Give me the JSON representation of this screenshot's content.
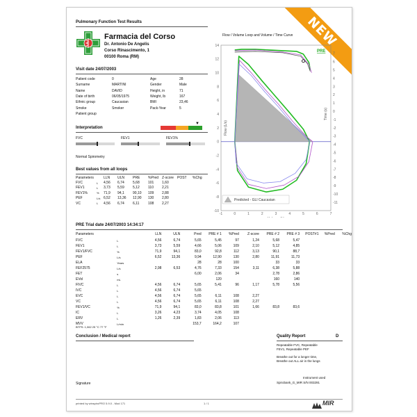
{
  "badge": {
    "text": "NEW"
  },
  "report_title": "Pulmonary Function Test Results",
  "pharmacy": {
    "name": "Farmacia del Corso",
    "doctor": "Dr. Antonio De Angelis",
    "address": "Corso Rinascimento, 1",
    "city": "00100 Roma (RM)"
  },
  "visit": {
    "title": "Visit date 24/07/2003",
    "left": [
      {
        "label": "Patient code",
        "value": "0"
      },
      {
        "label": "Surname",
        "value": "MARTINI"
      },
      {
        "label": "Name",
        "value": "DAVID"
      },
      {
        "label": "Date of birth",
        "value": "06/05/1975"
      },
      {
        "label": "Ethnic group",
        "value": "Caucasian"
      },
      {
        "label": "Smoke",
        "value": "Smoker"
      },
      {
        "label": "Patient group",
        "value": ""
      }
    ],
    "right": [
      {
        "label": "Age",
        "value": "28"
      },
      {
        "label": "Gender",
        "value": "Male"
      },
      {
        "label": "Height, in",
        "value": "71"
      },
      {
        "label": "Weight, lb",
        "value": "167"
      },
      {
        "label": "BMI",
        "value": "23,46"
      },
      {
        "label": "Pack-Year",
        "value": "5"
      }
    ]
  },
  "interpretation": {
    "title": "Interpretation",
    "bars": [
      {
        "label": "FVC",
        "level": 0.55
      },
      {
        "label": "FEV1",
        "level": 0.45
      },
      {
        "label": "FEV1%",
        "level": 0.6
      }
    ],
    "result": "Normal Spirometry"
  },
  "best": {
    "title": "Best values from all loops",
    "headers": [
      "Parameters",
      "",
      "LLN",
      "ULN",
      "PRE",
      "%Pred",
      "Z-score",
      "POST",
      "%Chg"
    ],
    "rows": [
      [
        "FVC",
        "L",
        "4,56",
        "6,74",
        "5,68",
        "101",
        "1,60",
        "",
        ""
      ],
      [
        "FEV1",
        "L",
        "3,73",
        "5,59",
        "5,12",
        "110",
        "2,21",
        "",
        ""
      ],
      [
        "FEV1%",
        "%",
        "71,9",
        "94,1",
        "90,10",
        "109",
        "2,88",
        "",
        ""
      ],
      [
        "PEF",
        "L/s",
        "6,52",
        "13,36",
        "12,90",
        "130",
        "2,80",
        "",
        ""
      ],
      [
        "VC",
        "L",
        "4,56",
        "6,74",
        "6,11",
        "108",
        "2,27",
        "",
        ""
      ]
    ]
  },
  "trial": {
    "title": "PRE Trial date 24/07/2003   14:34:17",
    "headers": [
      "Parameters",
      "",
      "LLN",
      "ULN",
      "Pred",
      "PRE # 1",
      "%Pred",
      "Z-score",
      "PRE # 2",
      "PRE # 3",
      "POST#1",
      "%Pred",
      "%Chg"
    ],
    "rows": [
      [
        "FVC",
        "L",
        "4,56",
        "6,74",
        "5,65",
        "5,45",
        "97",
        "1,24",
        "5,68",
        "5,47",
        "",
        "",
        ""
      ],
      [
        "FEV1",
        "L",
        "3,73",
        "5,59",
        "4,66",
        "5,06",
        "109",
        "2,10",
        "5,12",
        "4,85",
        "",
        "",
        ""
      ],
      [
        "FEV1/FVC",
        "%",
        "71,9",
        "94,1",
        "83,0",
        "92,8",
        "112",
        "3,13",
        "90,1",
        "88,7",
        "",
        "",
        ""
      ],
      [
        "PEF",
        "L/s",
        "6,52",
        "13,36",
        "9,94",
        "12,90",
        "130",
        "2,80",
        "11,91",
        "11,73",
        "",
        "",
        ""
      ],
      [
        "ELA",
        "Years",
        "",
        "",
        "28",
        "28",
        "100",
        "",
        "33",
        "33",
        "",
        "",
        ""
      ],
      [
        "FEF2575",
        "L/s",
        "2,98",
        "6,53",
        "4,76",
        "7,33",
        "154",
        "3,11",
        "6,38",
        "5,88",
        "",
        "",
        ""
      ],
      [
        "FET",
        "s",
        "",
        "",
        "6,00",
        "2,06",
        "34",
        "",
        "2,78",
        "2,86",
        "",
        "",
        ""
      ],
      [
        "EVol",
        "mL",
        "",
        "",
        "",
        "120",
        "",
        "",
        "160",
        "140",
        "",
        "",
        ""
      ],
      [
        "FIVC",
        "L",
        "4,56",
        "6,74",
        "5,65",
        "5,41",
        "96",
        "1,17",
        "5,78",
        "5,56",
        "",
        "",
        ""
      ],
      [
        "IVC",
        "L",
        "4,56",
        "6,74",
        "5,65",
        "",
        "",
        "",
        "",
        "",
        "",
        "",
        ""
      ],
      [
        "EVC",
        "L",
        "4,56",
        "6,74",
        "5,65",
        "6,11",
        "108",
        "2,27",
        "",
        "",
        "",
        "",
        ""
      ],
      [
        "VC",
        "L",
        "4,56",
        "6,74",
        "5,65",
        "6,11",
        "108",
        "2,27",
        "",
        "",
        "",
        "",
        ""
      ],
      [
        "FEV1/VC",
        "%",
        "71,9",
        "94,1",
        "83,0",
        "83,8",
        "101",
        "1,66",
        "83,8",
        "83,6",
        "",
        "",
        ""
      ],
      [
        "IC",
        "L",
        "3,26",
        "4,23",
        "3,74",
        "4,05",
        "108",
        "",
        "",
        "",
        "",
        "",
        ""
      ],
      [
        "ERV",
        "L",
        "1,26",
        "2,39",
        "1,83",
        "2,06",
        "113",
        "",
        "",
        "",
        "",
        "",
        ""
      ],
      [
        "MVV",
        "L/min",
        "",
        "",
        "153,7",
        "164,2",
        "107",
        "",
        "",
        "",
        "",
        "",
        ""
      ]
    ],
    "btps": "BTPS: 1,062  25 °C  77 °F"
  },
  "conclusion": {
    "title": "Conclusion / Medical report"
  },
  "quality": {
    "title": "Quality Report",
    "grade": "D",
    "lines": [
      "Repeatable FVC, Repeatable",
      "FEV1, Repeatable PEF"
    ],
    "advice": [
      "Breathe out for a longer time,",
      "Breathe out ALL air in the lungs"
    ],
    "instrument_label": "Instrument used",
    "instrument": "Spirobank_G_MIR S/N 003291"
  },
  "signature": {
    "label": "Signature"
  },
  "footer": {
    "printed_by": "printed by winspiroPRO 5.9.0 - Mod 171",
    "page": "1 / 1",
    "brand": "MIR"
  },
  "chart_data": {
    "type": "line",
    "title": "Flow / Volume Loop and Volume / Time Curve",
    "tag": "PRE",
    "xlabel": "Volume (L)",
    "ylabel": "Flow (L/s)",
    "y2label": "Time (s)",
    "xlim": [
      -1,
      7
    ],
    "ylim": [
      -10,
      14
    ],
    "y2lim": [
      -12,
      8
    ],
    "grid": false,
    "x_ticks": [
      -1,
      0,
      1,
      2,
      3,
      4,
      5,
      6,
      7
    ],
    "y_ticks": [
      14,
      12,
      10,
      8,
      6,
      4,
      2,
      0,
      -2,
      -4,
      -6,
      -8,
      -10
    ],
    "y2_ticks": [
      7,
      6,
      5,
      4,
      3,
      2,
      1,
      0,
      -1,
      -2,
      -3,
      -4,
      -5,
      -6,
      -7,
      -8,
      -9,
      -10,
      -11
    ],
    "legend": {
      "entry": "Predicted - GLI Caucasian",
      "position": "bottom-left"
    },
    "series": [
      {
        "color": "#22bb22",
        "points": [
          [
            0,
            0
          ],
          [
            0.3,
            12.4
          ],
          [
            1.0,
            11.2
          ],
          [
            2.0,
            8.8
          ],
          [
            3.0,
            6.5
          ],
          [
            4.0,
            4.2
          ],
          [
            5.0,
            1.8
          ],
          [
            5.45,
            0
          ],
          [
            5.2,
            -3.2
          ],
          [
            4.5,
            -5.6
          ],
          [
            3.5,
            -6.9
          ],
          [
            2.3,
            -7.3
          ],
          [
            1.0,
            -6.6
          ],
          [
            0.2,
            -4.2
          ],
          [
            0,
            0
          ]
        ]
      },
      {
        "color": "#22bb22",
        "points": [
          [
            0,
            13.3
          ],
          [
            0.5,
            13.4
          ],
          [
            1.5,
            13.4
          ],
          [
            2.5,
            13.3
          ],
          [
            3.5,
            13.2
          ],
          [
            4.5,
            13.1
          ],
          [
            5.0,
            12.7
          ],
          [
            5.4,
            11.5
          ],
          [
            5.5,
            10.4
          ]
        ]
      },
      {
        "color": "#b050c8",
        "points": [
          [
            0,
            0
          ],
          [
            0.35,
            11.8
          ],
          [
            1.2,
            10.0
          ],
          [
            2.2,
            7.6
          ],
          [
            3.2,
            5.4
          ],
          [
            4.2,
            3.0
          ],
          [
            5.2,
            0.8
          ],
          [
            5.68,
            0
          ],
          [
            5.4,
            -2.9
          ],
          [
            4.7,
            -5.0
          ],
          [
            3.6,
            -6.3
          ],
          [
            2.3,
            -6.8
          ],
          [
            1.0,
            -6.2
          ],
          [
            0.2,
            -3.8
          ],
          [
            0,
            0
          ]
        ]
      },
      {
        "color": "#b050c8",
        "points": [
          [
            0,
            13.2
          ],
          [
            1.5,
            13.3
          ],
          [
            3.5,
            13.0
          ],
          [
            4.8,
            12.6
          ],
          [
            5.4,
            11.2
          ],
          [
            5.6,
            10.0
          ]
        ]
      },
      {
        "color": "#8888ee",
        "points": [
          [
            0,
            0
          ],
          [
            0.3,
            11.3
          ],
          [
            1.2,
            9.6
          ],
          [
            2.2,
            7.2
          ],
          [
            3.2,
            5.0
          ],
          [
            4.2,
            2.6
          ],
          [
            5.47,
            0
          ],
          [
            5.2,
            -2.6
          ],
          [
            4.4,
            -4.6
          ],
          [
            3.3,
            -5.8
          ],
          [
            2.1,
            -6.0
          ],
          [
            0.9,
            -5.4
          ],
          [
            0.1,
            -3.1
          ],
          [
            0,
            0
          ]
        ]
      },
      {
        "color": "#555555",
        "points": [
          [
            0,
            13.0
          ],
          [
            1.5,
            13.1
          ],
          [
            3.5,
            12.9
          ],
          [
            4.8,
            12.4
          ],
          [
            5.3,
            11.3
          ],
          [
            5.5,
            10.2
          ]
        ]
      }
    ],
    "predicted_area": [
      [
        0,
        0
      ],
      [
        0.2,
        9.9
      ],
      [
        5.65,
        0
      ]
    ],
    "predicted_area_color": "#b5b5b5",
    "marker": [
      5.0,
      11.7
    ]
  }
}
